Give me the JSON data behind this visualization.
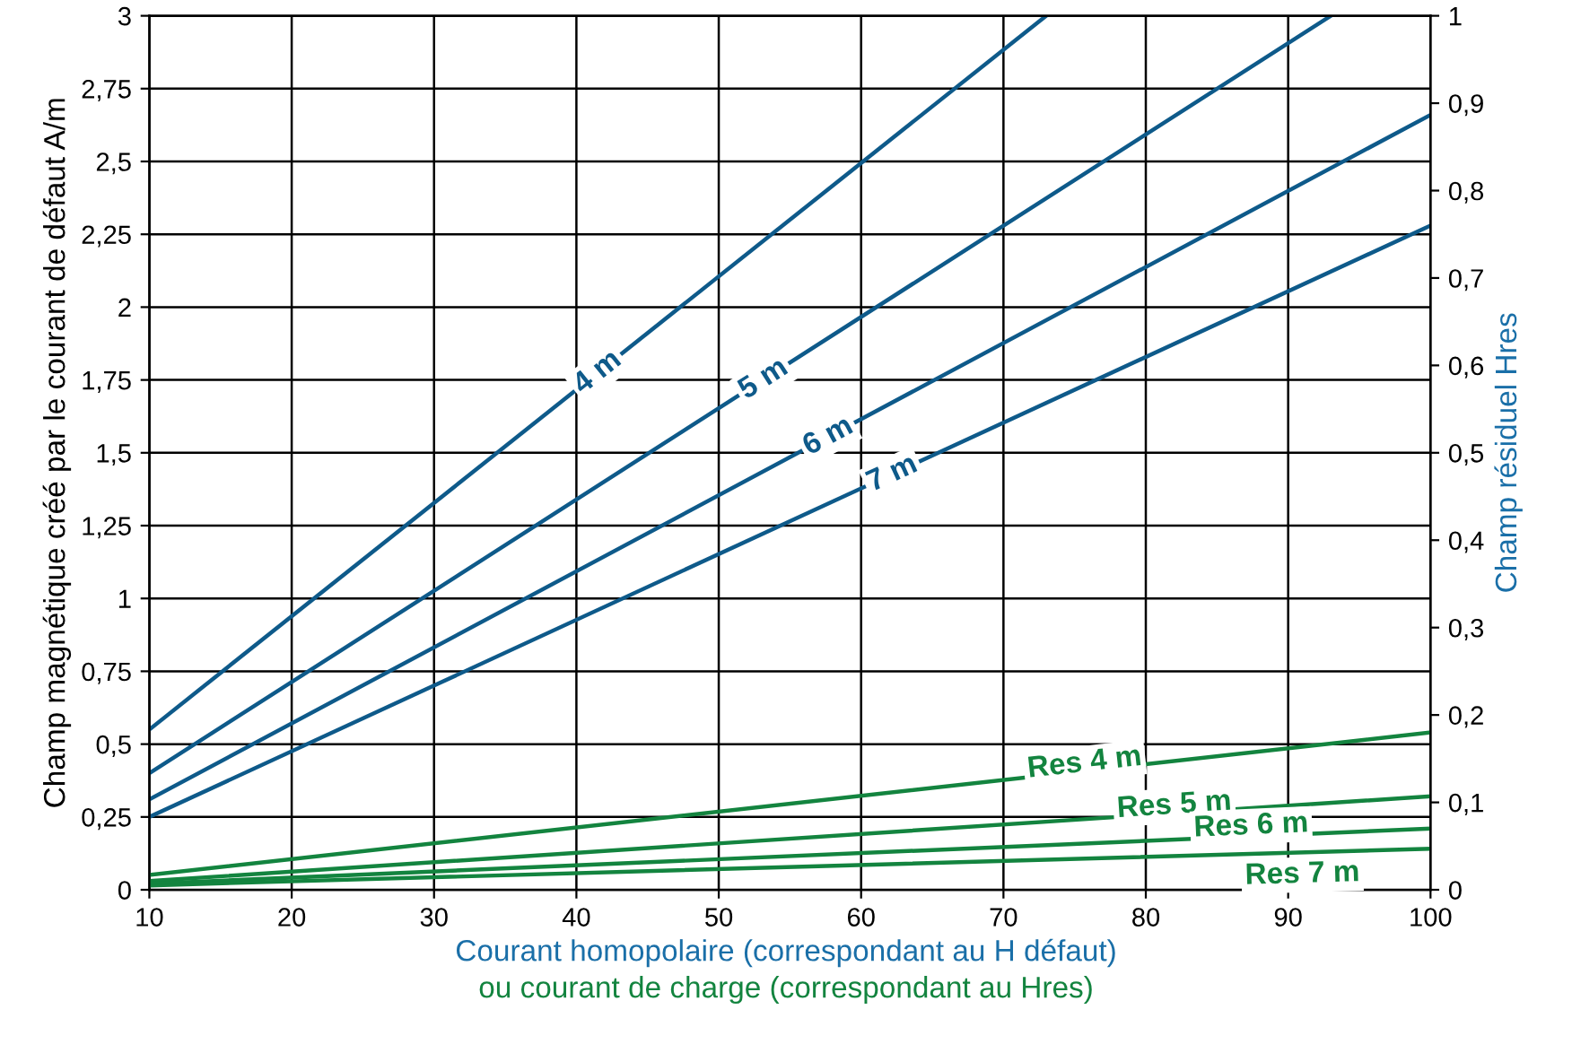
{
  "chart_data": {
    "type": "line",
    "xlabel": "Courant homopolaire (correspondant au H défaut)\nou courant de charge (correspondant au Hres)",
    "ylabel": "Champ magnétique créé par le courant de défaut A/m",
    "y2label": "Champ résiduel Hres",
    "xlim": [
      10,
      100
    ],
    "xticks": [
      10,
      20,
      30,
      40,
      50,
      60,
      70,
      80,
      90,
      100
    ],
    "ylim": [
      0,
      3
    ],
    "yticks": [
      0,
      {
        "value": 0.25,
        "label": "0,25"
      },
      {
        "value": 0.5,
        "label": "0,5"
      },
      {
        "value": 0.75,
        "label": "0,75"
      },
      1,
      {
        "value": 1.25,
        "label": "1,25"
      },
      {
        "value": 1.5,
        "label": "1,5"
      },
      {
        "value": 1.75,
        "label": "1,75"
      },
      2,
      {
        "value": 2.25,
        "label": "2,25"
      },
      {
        "value": 2.5,
        "label": "2,5"
      },
      {
        "value": 2.75,
        "label": "2,75"
      },
      3
    ],
    "y2lim": [
      0,
      1
    ],
    "y2ticks": [
      0,
      {
        "value": 0.1,
        "label": "0,1"
      },
      {
        "value": 0.2,
        "label": "0,2"
      },
      {
        "value": 0.3,
        "label": "0,3"
      },
      {
        "value": 0.4,
        "label": "0,4"
      },
      {
        "value": 0.5,
        "label": "0,5"
      },
      {
        "value": 0.6,
        "label": "0,6"
      },
      {
        "value": 0.7,
        "label": "0,7"
      },
      {
        "value": 0.8,
        "label": "0,8"
      },
      {
        "value": 0.9,
        "label": "0,9"
      },
      1
    ],
    "grid": true,
    "legend": false,
    "marker": "none",
    "line_style": "solid",
    "series": [
      {
        "name": "4 m",
        "color": "#0e5a8a",
        "x": [
          10,
          73
        ],
        "values": [
          0.55,
          3.0
        ]
      },
      {
        "name": "5 m",
        "color": "#0e5a8a",
        "x": [
          10,
          93
        ],
        "values": [
          0.4,
          3.0
        ]
      },
      {
        "name": "6 m",
        "color": "#0e5a8a",
        "x": [
          10,
          100
        ],
        "values": [
          0.31,
          2.66
        ]
      },
      {
        "name": "7 m",
        "color": "#0e5a8a",
        "x": [
          10,
          100
        ],
        "values": [
          0.25,
          2.28
        ]
      },
      {
        "name": "Res 4 m",
        "color": "#13843f",
        "axis": "y2",
        "x": [
          10,
          100
        ],
        "values": [
          0.017,
          0.18
        ]
      },
      {
        "name": "Res 5 m",
        "color": "#13843f",
        "axis": "y2",
        "x": [
          10,
          100
        ],
        "values": [
          0.01,
          0.107
        ]
      },
      {
        "name": "Res 6 m",
        "color": "#13843f",
        "axis": "y2",
        "x": [
          10,
          100
        ],
        "values": [
          0.007,
          0.07
        ]
      },
      {
        "name": "Res 7 m",
        "color": "#13843f",
        "axis": "y2",
        "x": [
          10,
          100
        ],
        "values": [
          0.005,
          0.047
        ]
      }
    ]
  }
}
